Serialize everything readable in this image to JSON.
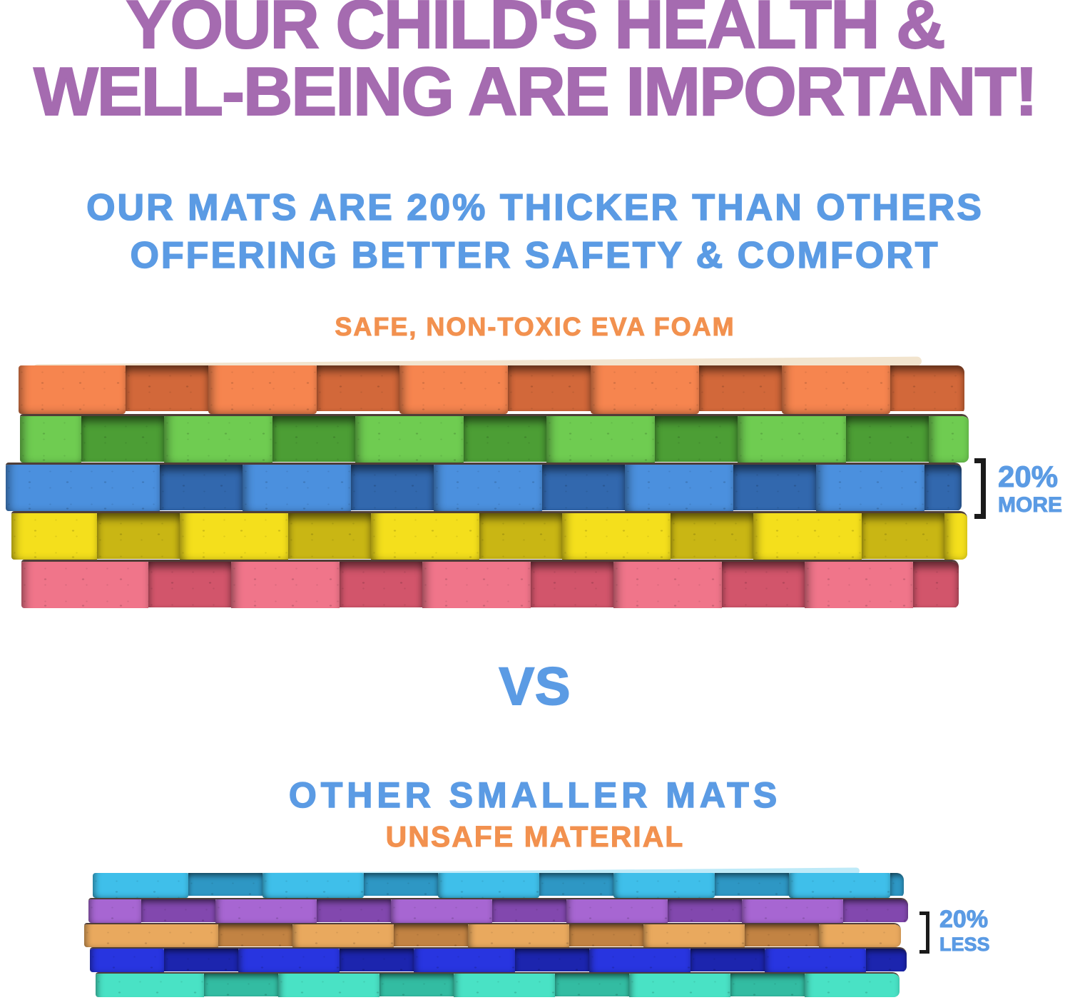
{
  "page": {
    "background": "#ffffff"
  },
  "heading": {
    "line1": "YOUR CHILD'S HEALTH &",
    "line2": "WELL-BEING ARE IMPORTANT!",
    "color": "#A56BB0"
  },
  "subheading": {
    "line1": "OUR MATS ARE 20% THICKER THAN OTHERS",
    "line2": "OFFERING BETTER SAFETY & COMFORT",
    "color": "#5B9BE4"
  },
  "safe_label": {
    "text": "SAFE, NON-TOXIC EVA FOAM",
    "color": "#F2914F"
  },
  "vs_label": {
    "text": "VS",
    "color": "#5B9BE4"
  },
  "other_heading": {
    "text": "OTHER SMALLER MATS",
    "color": "#5B9BE4"
  },
  "unsafe_label": {
    "text": "UNSAFE MATERIAL",
    "color": "#F2914F"
  },
  "annotations": {
    "color": "#5B9BE4",
    "bracket_color": "#1A1A1A",
    "more": {
      "line1": "20%",
      "line2": "MORE"
    },
    "less": {
      "line1": "20%",
      "line2": "LESS"
    }
  },
  "stacks": {
    "thick": {
      "top_surface": "#F2E4CE",
      "layers": [
        {
          "name": "orange",
          "color": "#F6854F",
          "dark": "#D2683A"
        },
        {
          "name": "green",
          "color": "#6FCC51",
          "dark": "#4C9E35"
        },
        {
          "name": "blue",
          "color": "#4B90DE",
          "dark": "#3268AE"
        },
        {
          "name": "yellow",
          "color": "#F4DF1C",
          "dark": "#C9B614"
        },
        {
          "name": "pink",
          "color": "#F0758A",
          "dark": "#D2556B"
        }
      ]
    },
    "thin": {
      "top_surface": "#BEEAF8",
      "layers": [
        {
          "name": "skyblue",
          "color": "#3FBFEA",
          "dark": "#2E97C4"
        },
        {
          "name": "purple",
          "color": "#A766D2",
          "dark": "#8248AE"
        },
        {
          "name": "tan",
          "color": "#E9A95E",
          "dark": "#C28343"
        },
        {
          "name": "navy",
          "color": "#2835E0",
          "dark": "#1C25AE"
        },
        {
          "name": "teal",
          "color": "#49E2C5",
          "dark": "#33BCA2"
        }
      ]
    }
  }
}
